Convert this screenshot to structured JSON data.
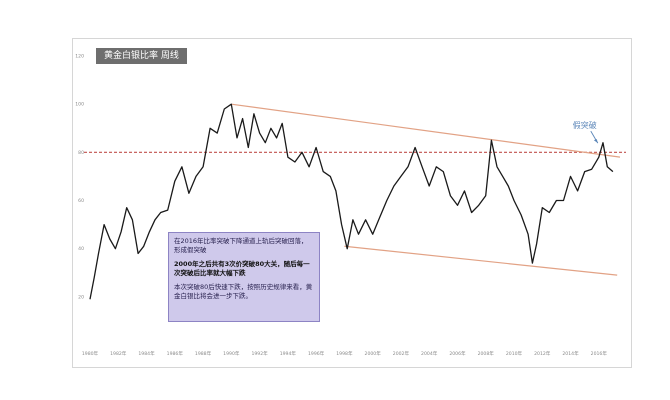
{
  "chart_data": {
    "type": "line",
    "title": "黄金白银比率  周线",
    "x_tick_labels": [
      "1980年",
      "1982年",
      "1984年",
      "1986年",
      "1988年",
      "1990年",
      "1992年",
      "1994年",
      "1996年",
      "1998年",
      "2000年",
      "2002年",
      "2004年",
      "2006年",
      "2008年",
      "2010年",
      "2012年",
      "2014年",
      "2016年"
    ],
    "y_tick_labels": [
      "20",
      "40",
      "60",
      "80",
      "100",
      "120"
    ],
    "ylim": [
      0,
      120
    ],
    "xlim": [
      1980,
      2017.5
    ],
    "grid": false,
    "series": [
      {
        "color": "#1a1a1a",
        "x": [
          1980.0,
          1980.3,
          1980.6,
          1981.0,
          1981.4,
          1981.8,
          1982.2,
          1982.6,
          1983.0,
          1983.4,
          1983.8,
          1984.2,
          1984.6,
          1985.0,
          1985.5,
          1986.0,
          1986.5,
          1987.0,
          1987.5,
          1988.0,
          1988.5,
          1989.0,
          1989.5,
          1990.0,
          1990.4,
          1990.8,
          1991.2,
          1991.6,
          1992.0,
          1992.4,
          1992.8,
          1993.2,
          1993.6,
          1994.0,
          1994.5,
          1995.0,
          1995.5,
          1996.0,
          1996.5,
          1997.0,
          1997.4,
          1997.8,
          1998.2,
          1998.6,
          1999.0,
          1999.5,
          2000.0,
          2000.5,
          2001.0,
          2001.5,
          2002.0,
          2002.5,
          2003.0,
          2003.5,
          2004.0,
          2004.5,
          2005.0,
          2005.5,
          2006.0,
          2006.5,
          2007.0,
          2007.5,
          2008.0,
          2008.4,
          2008.8,
          2009.2,
          2009.6,
          2010.0,
          2010.5,
          2011.0,
          2011.3,
          2011.6,
          2012.0,
          2012.5,
          2013.0,
          2013.5,
          2014.0,
          2014.5,
          2015.0,
          2015.5,
          2016.0,
          2016.3,
          2016.6,
          2017.0
        ],
        "values": [
          19,
          28,
          38,
          50,
          44,
          40,
          47,
          57,
          52,
          38,
          41,
          47,
          52,
          55,
          56,
          68,
          74,
          63,
          70,
          74,
          90,
          88,
          98,
          100,
          86,
          94,
          82,
          96,
          88,
          84,
          90,
          86,
          92,
          78,
          76,
          80,
          74,
          82,
          72,
          70,
          64,
          50,
          40,
          52,
          46,
          52,
          46,
          53,
          60,
          66,
          70,
          74,
          82,
          74,
          66,
          74,
          72,
          62,
          58,
          64,
          55,
          58,
          62,
          85,
          74,
          70,
          66,
          60,
          54,
          46,
          34,
          42,
          57,
          55,
          60,
          60,
          70,
          64,
          72,
          73,
          78,
          84,
          74,
          72
        ]
      }
    ],
    "reference_lines": [
      {
        "type": "horizontal",
        "y": 80,
        "style": "dashed",
        "color": "#c0504d"
      },
      {
        "type": "channel",
        "from": [
          1990.0,
          100
        ],
        "to": [
          2017.5,
          78
        ],
        "color": "#e2a285"
      },
      {
        "type": "channel",
        "from": [
          1998.0,
          41
        ],
        "to": [
          2017.3,
          29
        ],
        "color": "#e2a285"
      }
    ],
    "annotations": [
      {
        "text": "假突破",
        "x": 2016.0,
        "y": 83
      }
    ]
  },
  "callout": {
    "text1": "在2016年比率突破下降通道上轨后突破回落，形成假突破",
    "text2": "2000年之后共有3次价突破80大关，随后每一次突破后比率就大幅下跌",
    "text3": "本次突破80后快速下跌，按照历史规律来看，黄金白银比将会进一步下跌。"
  },
  "colors": {
    "line": "#1a1a1a",
    "resistance": "#c0504d",
    "channel": "#e2a285",
    "callout_bg": "#cfc9eb",
    "title_bg": "#6e6e6e"
  }
}
